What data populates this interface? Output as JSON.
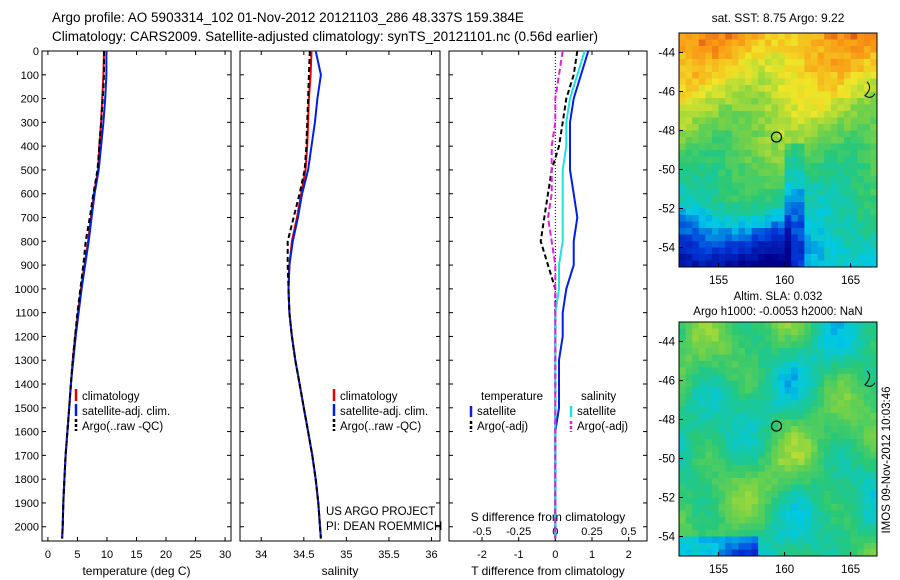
{
  "header": {
    "line1": "Argo profile: AO 5903314_102 01-Nov-2012 20121103_286 48.337S 159.384E",
    "line2": "Climatology: CARS2009. Satellite-adjusted climatology: synTS_20121101.nc (0.56d earlier)"
  },
  "colors": {
    "climatology": "#e00000",
    "satellite": "#0020e0",
    "argo": "#000000",
    "sal_satellite": "#20e0e0",
    "sal_argo": "#e020e0"
  },
  "depth_axis": {
    "ticks": [
      "0",
      "100",
      "200",
      "300",
      "400",
      "500",
      "600",
      "700",
      "800",
      "900",
      "1000",
      "1100",
      "1200",
      "1300",
      "1400",
      "1500",
      "1600",
      "1700",
      "1800",
      "1900",
      "2000"
    ]
  },
  "chart_data": [
    {
      "type": "line",
      "xlabel": "temperature (deg C)",
      "xlim": [
        -1,
        31
      ],
      "ylim": [
        2060,
        0
      ],
      "x_ticks": [
        "0",
        "5",
        "10",
        "15",
        "20",
        "25",
        "30"
      ],
      "legend": [
        "climatology",
        "satellite-adj. clim.",
        "Argo(..raw -QC)"
      ],
      "series": [
        {
          "name": "climatology",
          "color": "#e00000",
          "dash": "",
          "x": [
            9.5,
            9.4,
            9.2,
            9.0,
            8.7,
            8.5,
            7.8,
            7.3,
            6.8,
            6.2,
            5.6,
            5.1,
            4.6,
            4.2,
            3.9,
            3.6,
            3.3,
            3.0,
            2.8,
            2.6,
            2.5,
            2.4
          ],
          "y": [
            0,
            100,
            200,
            300,
            400,
            500,
            600,
            700,
            800,
            900,
            1000,
            1100,
            1200,
            1300,
            1400,
            1500,
            1600,
            1700,
            1800,
            1900,
            2000,
            2050
          ]
        },
        {
          "name": "satellite-adj. clim.",
          "color": "#0020e0",
          "dash": "",
          "x": [
            9.9,
            9.9,
            9.7,
            9.4,
            9.0,
            8.6,
            7.9,
            7.4,
            6.9,
            6.3,
            5.7,
            5.2,
            4.7,
            4.3,
            3.9,
            3.6,
            3.3,
            3.0,
            2.8,
            2.6,
            2.5,
            2.4
          ],
          "y": [
            0,
            100,
            200,
            300,
            400,
            500,
            600,
            700,
            800,
            900,
            1000,
            1100,
            1200,
            1300,
            1400,
            1500,
            1600,
            1700,
            1800,
            1900,
            2000,
            2050
          ]
        },
        {
          "name": "Argo(..raw -QC)",
          "color": "#000000",
          "dash": "5,3",
          "x": [
            9.5,
            9.5,
            9.3,
            9.0,
            8.7,
            8.4,
            7.7,
            7.1,
            6.4,
            6.0,
            5.5,
            5.0,
            4.6,
            4.2,
            3.9,
            3.6,
            3.3,
            3.0,
            2.8,
            2.6,
            2.5,
            2.4
          ],
          "y": [
            0,
            100,
            200,
            300,
            400,
            500,
            600,
            700,
            800,
            900,
            1000,
            1100,
            1200,
            1300,
            1400,
            1500,
            1600,
            1700,
            1800,
            1900,
            2000,
            2050
          ]
        }
      ]
    },
    {
      "type": "line",
      "xlabel": "salinity",
      "xlim": [
        33.75,
        36.1
      ],
      "ylim": [
        2060,
        0
      ],
      "x_ticks": [
        "34",
        "34.5",
        "35",
        "35.5",
        "36"
      ],
      "legend": [
        "climatology",
        "satellite-adj. clim.",
        "Argo(..raw -QC)"
      ],
      "annotation": [
        "US ARGO PROJECT",
        "PI: DEAN ROEMMICH"
      ],
      "series": [
        {
          "name": "climatology",
          "color": "#e00000",
          "dash": "",
          "x": [
            34.59,
            34.58,
            34.56,
            34.55,
            34.54,
            34.52,
            34.47,
            34.42,
            34.36,
            34.33,
            34.32,
            34.33,
            34.36,
            34.4,
            34.45,
            34.5,
            34.55,
            34.6,
            34.64,
            34.67,
            34.69,
            34.7
          ],
          "y": [
            0,
            100,
            200,
            300,
            400,
            500,
            600,
            700,
            800,
            900,
            1000,
            1100,
            1200,
            1300,
            1400,
            1500,
            1600,
            1700,
            1800,
            1900,
            2000,
            2050
          ]
        },
        {
          "name": "satellite-adj. clim.",
          "color": "#0020e0",
          "dash": "",
          "x": [
            34.64,
            34.7,
            34.66,
            34.63,
            34.59,
            34.55,
            34.48,
            34.43,
            34.37,
            34.33,
            34.32,
            34.33,
            34.36,
            34.4,
            34.45,
            34.5,
            34.55,
            34.6,
            34.64,
            34.67,
            34.69,
            34.7
          ],
          "y": [
            0,
            100,
            200,
            300,
            400,
            500,
            600,
            700,
            800,
            900,
            1000,
            1100,
            1200,
            1300,
            1400,
            1500,
            1600,
            1700,
            1800,
            1900,
            2000,
            2050
          ]
        },
        {
          "name": "Argo(..raw -QC)",
          "color": "#000000",
          "dash": "5,3",
          "x": [
            34.57,
            34.56,
            34.55,
            34.54,
            34.53,
            34.51,
            34.45,
            34.38,
            34.31,
            34.31,
            34.32,
            34.33,
            34.36,
            34.4,
            34.45,
            34.5,
            34.55,
            34.6,
            34.64,
            34.67,
            34.69,
            34.7
          ],
          "y": [
            0,
            100,
            200,
            300,
            400,
            500,
            600,
            700,
            800,
            900,
            1000,
            1100,
            1200,
            1300,
            1400,
            1500,
            1600,
            1700,
            1800,
            1900,
            2000,
            2050
          ]
        }
      ]
    },
    {
      "type": "line",
      "xlabel": "T difference from climatology",
      "xlabel_top": "S difference from climatology",
      "xlim": [
        -2.9,
        2.5
      ],
      "ylim": [
        2060,
        0
      ],
      "x_ticks": [
        "-2",
        "-1",
        "0",
        "1",
        "2"
      ],
      "x_ticks_top": [
        "-0.5",
        "-0.25",
        "0",
        "0.25",
        "0.5"
      ],
      "legend_title_left": "temperature",
      "legend_title_right": "salinity",
      "legend_left": [
        "satellite",
        "Argo(-adj)"
      ],
      "legend_right": [
        "satellite",
        "Argo(-adj)"
      ],
      "series": [
        {
          "name": "satellite",
          "color": "#0020e0",
          "dash": "",
          "x": [
            0.9,
            0.7,
            0.5,
            0.4,
            0.4,
            0.4,
            0.5,
            0.6,
            0.5,
            0.5,
            0.3,
            0.2,
            0.2,
            0.1,
            0.1,
            0.1,
            0.0,
            0.0,
            0.0,
            0.0,
            0.0,
            0.0
          ],
          "y": [
            0,
            100,
            200,
            300,
            400,
            500,
            600,
            700,
            800,
            900,
            1000,
            1100,
            1200,
            1300,
            1400,
            1500,
            1600,
            1700,
            1800,
            1900,
            2000,
            2050
          ]
        },
        {
          "name": "Argo(-adj)",
          "color": "#000000",
          "dash": "5,3",
          "x": [
            0.6,
            0.5,
            0.3,
            0.2,
            0.1,
            -0.1,
            -0.2,
            -0.3,
            -0.4,
            -0.2,
            0.0,
            0.0,
            0.0,
            0.0,
            0.0,
            0.0,
            0.0,
            0.0,
            0.0,
            0.0,
            0.0,
            0.0
          ],
          "y": [
            0,
            100,
            200,
            300,
            400,
            500,
            600,
            700,
            800,
            900,
            1000,
            1100,
            1200,
            1300,
            1400,
            1500,
            1600,
            1700,
            1800,
            1900,
            2000,
            2050
          ]
        },
        {
          "name": "satellite",
          "color": "#20e0e0",
          "dash": "",
          "x": [
            0.8,
            0.6,
            0.4,
            0.3,
            0.3,
            0.2,
            0.2,
            0.2,
            0.2,
            0.1,
            0.1,
            0.0,
            0.0,
            0.0,
            0.0,
            0.0,
            0.0,
            0.0,
            0.0,
            0.0,
            0.0,
            0.0
          ],
          "y": [
            0,
            100,
            200,
            300,
            400,
            500,
            600,
            700,
            800,
            900,
            1000,
            1100,
            1200,
            1300,
            1400,
            1500,
            1600,
            1700,
            1800,
            1900,
            2000,
            2050
          ]
        },
        {
          "name": "Argo(-adj)",
          "color": "#e020e0",
          "dash": "6,3",
          "x": [
            0.2,
            0.1,
            0.0,
            0.0,
            -0.1,
            -0.1,
            -0.1,
            -0.2,
            -0.1,
            0.0,
            0.0,
            0.0,
            0.0,
            0.0,
            0.0,
            0.0,
            0.0,
            0.0,
            0.0,
            0.0,
            0.0,
            0.0
          ],
          "y": [
            0,
            100,
            200,
            300,
            400,
            500,
            600,
            700,
            800,
            900,
            1000,
            1100,
            1200,
            1300,
            1400,
            1500,
            1600,
            1700,
            1800,
            1900,
            2000,
            2050
          ]
        }
      ]
    },
    {
      "type": "heatmap",
      "title": "sat. SST: 8.75 Argo: 9.22",
      "xlim": [
        152,
        167
      ],
      "ylim": [
        -55,
        -43
      ],
      "x_ticks": [
        "155",
        "160",
        "165"
      ],
      "y_ticks": [
        "-44",
        "-46",
        "-48",
        "-50",
        "-52",
        "-54"
      ],
      "marker": {
        "lon": 159.384,
        "lat": -48.337
      }
    },
    {
      "type": "heatmap",
      "title": "Altim. SLA: 0.032",
      "subtitle": "Argo h1000: -0.0053 h2000: NaN",
      "xlim": [
        152,
        167
      ],
      "ylim": [
        -55,
        -43
      ],
      "x_ticks": [
        "155",
        "160",
        "165"
      ],
      "y_ticks": [
        "-44",
        "-46",
        "-48",
        "-50",
        "-52",
        "-54"
      ],
      "marker": {
        "lon": 159.384,
        "lat": -48.337
      }
    }
  ],
  "side_label": "IMOS 09-Nov-2012 10:03:46"
}
